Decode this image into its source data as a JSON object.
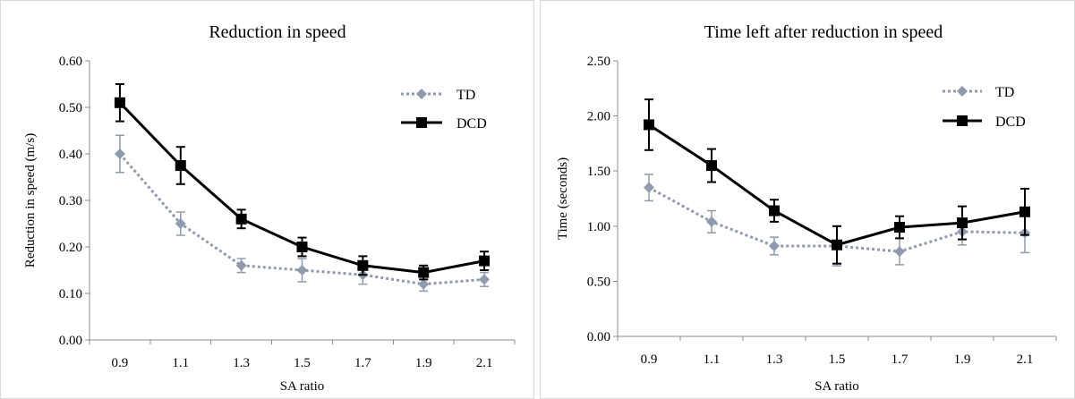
{
  "chart_data": [
    {
      "type": "line",
      "title": "Reduction in speed",
      "xlabel": "SA ratio",
      "ylabel": "Reduction in speed (m/s)",
      "categories": [
        "0.9",
        "1.1",
        "1.3",
        "1.5",
        "1.7",
        "1.9",
        "2.1"
      ],
      "ylim": [
        0,
        0.6
      ],
      "yticks": [
        "0.00",
        "0.10",
        "0.20",
        "0.30",
        "0.40",
        "0.50",
        "0.60"
      ],
      "legend_position": "top-right",
      "grid": false,
      "series": [
        {
          "name": "TD",
          "values": [
            0.4,
            0.25,
            0.16,
            0.15,
            0.14,
            0.12,
            0.13
          ],
          "errors": [
            0.04,
            0.025,
            0.015,
            0.025,
            0.02,
            0.015,
            0.015
          ],
          "color": "#8e9aad",
          "style": "dotted",
          "marker": "diamond"
        },
        {
          "name": "DCD",
          "values": [
            0.51,
            0.375,
            0.26,
            0.2,
            0.16,
            0.145,
            0.17
          ],
          "errors": [
            0.04,
            0.04,
            0.02,
            0.02,
            0.02,
            0.015,
            0.02
          ],
          "color": "#000000",
          "style": "solid",
          "marker": "square"
        }
      ]
    },
    {
      "type": "line",
      "title": "Time left after reduction in speed",
      "xlabel": "SA ratio",
      "ylabel": "Time (seconds)",
      "categories": [
        "0.9",
        "1.1",
        "1.3",
        "1.5",
        "1.7",
        "1.9",
        "2.1"
      ],
      "ylim": [
        0,
        2.5
      ],
      "yticks": [
        "0.00",
        "0.50",
        "1.00",
        "1.50",
        "2.00",
        "2.50"
      ],
      "legend_position": "top-right",
      "grid": false,
      "series": [
        {
          "name": "TD",
          "values": [
            1.35,
            1.04,
            0.82,
            0.82,
            0.77,
            0.95,
            0.94
          ],
          "errors": [
            0.12,
            0.1,
            0.08,
            0.18,
            0.12,
            0.12,
            0.18
          ],
          "color": "#8e9aad",
          "style": "dotted",
          "marker": "diamond"
        },
        {
          "name": "DCD",
          "values": [
            1.92,
            1.55,
            1.14,
            0.83,
            0.99,
            1.03,
            1.13
          ],
          "errors": [
            0.23,
            0.15,
            0.1,
            0.17,
            0.1,
            0.15,
            0.21
          ],
          "color": "#000000",
          "style": "solid",
          "marker": "square"
        }
      ]
    }
  ]
}
